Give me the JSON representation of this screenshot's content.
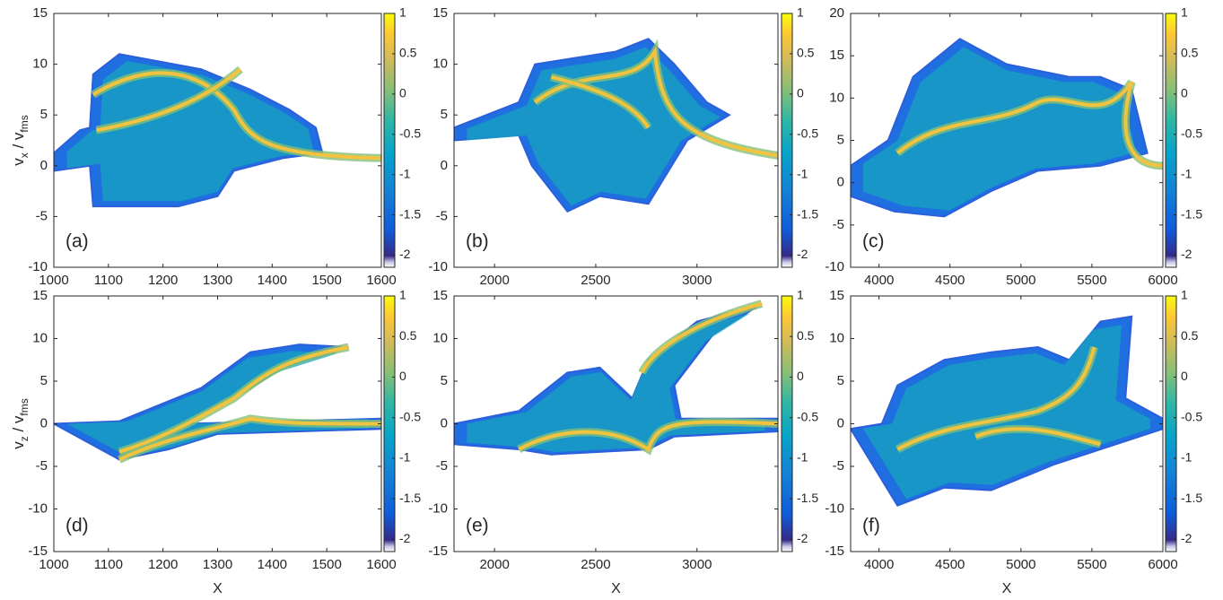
{
  "chart_data": [
    {
      "type": "heatmap",
      "panel_label": "(a)",
      "y_label": [
        "v",
        "x",
        " / v",
        "fms"
      ],
      "xlim": [
        1000,
        1600
      ],
      "xticks": [
        1000,
        1100,
        1200,
        1300,
        1400,
        1500,
        1600
      ],
      "ylim": [
        -10,
        15
      ],
      "yticks": [
        -10,
        -5,
        0,
        5,
        10,
        15
      ],
      "clim": [
        -2.15,
        1
      ],
      "cticks": [
        -2,
        -1.5,
        -1,
        -0.5,
        0,
        0.5,
        1
      ]
    },
    {
      "type": "heatmap",
      "panel_label": "(b)",
      "xlim": [
        1800,
        3400
      ],
      "xticks": [
        2000,
        2500,
        3000
      ],
      "ylim": [
        -10,
        15
      ],
      "yticks": [
        -10,
        -5,
        0,
        5,
        10,
        15
      ],
      "clim": [
        -2.15,
        1
      ],
      "cticks": [
        -2,
        -1.5,
        -1,
        -0.5,
        0,
        0.5,
        1
      ]
    },
    {
      "type": "heatmap",
      "panel_label": "(c)",
      "xlim": [
        3800,
        6000
      ],
      "xticks": [
        4000,
        4500,
        5000,
        5500,
        6000
      ],
      "ylim": [
        -10,
        20
      ],
      "yticks": [
        -10,
        -5,
        0,
        5,
        10,
        15,
        20
      ],
      "clim": [
        -2.15,
        1
      ],
      "cticks": [
        -2,
        -1.5,
        -1,
        -0.5,
        0,
        0.5,
        1
      ]
    },
    {
      "type": "heatmap",
      "panel_label": "(d)",
      "y_label": [
        "v",
        "z",
        " / v",
        "fms"
      ],
      "x_label": "X",
      "xlim": [
        1000,
        1600
      ],
      "xticks": [
        1000,
        1100,
        1200,
        1300,
        1400,
        1500,
        1600
      ],
      "ylim": [
        -15,
        15
      ],
      "yticks": [
        -15,
        -10,
        -5,
        0,
        5,
        10,
        15
      ],
      "clim": [
        -2.15,
        1
      ],
      "cticks": [
        -2,
        -1.5,
        -1,
        -0.5,
        0,
        0.5,
        1
      ]
    },
    {
      "type": "heatmap",
      "panel_label": "(e)",
      "x_label": "X",
      "xlim": [
        1800,
        3400
      ],
      "xticks": [
        2000,
        2500,
        3000
      ],
      "ylim": [
        -15,
        15
      ],
      "yticks": [
        -15,
        -10,
        -5,
        0,
        5,
        10,
        15
      ],
      "clim": [
        -2.15,
        1
      ],
      "cticks": [
        -2,
        -1.5,
        -1,
        -0.5,
        0,
        0.5,
        1
      ]
    },
    {
      "type": "heatmap",
      "panel_label": "(f)",
      "x_label": "X",
      "xlim": [
        3800,
        6000
      ],
      "xticks": [
        4000,
        4500,
        5000,
        5500,
        6000
      ],
      "ylim": [
        -15,
        15
      ],
      "yticks": [
        -15,
        -10,
        -5,
        0,
        5,
        10,
        15
      ],
      "clim": [
        -2.15,
        1
      ],
      "cticks": [
        -2,
        -1.5,
        -1,
        -0.5,
        0,
        0.5,
        1
      ]
    }
  ]
}
